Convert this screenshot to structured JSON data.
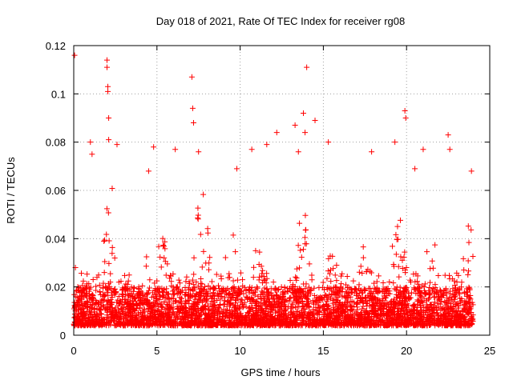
{
  "chart_data": {
    "type": "scatter",
    "title": "Day 018 of 2021, Rate Of TEC Index for receiver rg08",
    "xlabel": "GPS time / hours",
    "ylabel": "ROTI / TECUs",
    "xlim": [
      0,
      25
    ],
    "ylim": [
      0,
      0.12
    ],
    "x_ticks": [
      0,
      5,
      10,
      15,
      20,
      25
    ],
    "y_ticks": [
      0,
      0.02,
      0.04,
      0.06,
      0.08,
      0.1,
      0.12
    ],
    "x_tick_labels": [
      "0",
      "5",
      "10",
      "15",
      "20",
      "25"
    ],
    "y_tick_labels": [
      "0",
      "0.02",
      "0.04",
      "0.06",
      "0.08",
      "0.1",
      "0.12"
    ],
    "grid": true,
    "marker": "+",
    "color": "#ff0000",
    "series": [
      {
        "name": "rg08",
        "data_range_x": [
          0,
          24
        ],
        "baseline_range_y": [
          0.004,
          0.02
        ],
        "spike_points": [
          {
            "x": 0.05,
            "y": 0.116
          },
          {
            "x": 0.1,
            "y": 0.028
          },
          {
            "x": 1.0,
            "y": 0.08
          },
          {
            "x": 1.1,
            "y": 0.075
          },
          {
            "x": 2.0,
            "y": 0.114
          },
          {
            "x": 2.0,
            "y": 0.111
          },
          {
            "x": 2.05,
            "y": 0.103
          },
          {
            "x": 2.05,
            "y": 0.101
          },
          {
            "x": 2.1,
            "y": 0.09
          },
          {
            "x": 2.1,
            "y": 0.081
          },
          {
            "x": 2.6,
            "y": 0.079
          },
          {
            "x": 4.5,
            "y": 0.068
          },
          {
            "x": 4.8,
            "y": 0.078
          },
          {
            "x": 6.1,
            "y": 0.077
          },
          {
            "x": 7.1,
            "y": 0.107
          },
          {
            "x": 7.15,
            "y": 0.094
          },
          {
            "x": 7.2,
            "y": 0.088
          },
          {
            "x": 7.5,
            "y": 0.076
          },
          {
            "x": 9.8,
            "y": 0.069
          },
          {
            "x": 10.7,
            "y": 0.077
          },
          {
            "x": 11.6,
            "y": 0.079
          },
          {
            "x": 12.2,
            "y": 0.084
          },
          {
            "x": 13.3,
            "y": 0.087
          },
          {
            "x": 13.5,
            "y": 0.076
          },
          {
            "x": 13.8,
            "y": 0.092
          },
          {
            "x": 13.9,
            "y": 0.084
          },
          {
            "x": 14.0,
            "y": 0.111
          },
          {
            "x": 14.5,
            "y": 0.089
          },
          {
            "x": 15.3,
            "y": 0.08
          },
          {
            "x": 17.9,
            "y": 0.076
          },
          {
            "x": 19.3,
            "y": 0.08
          },
          {
            "x": 19.9,
            "y": 0.093
          },
          {
            "x": 19.95,
            "y": 0.09
          },
          {
            "x": 20.5,
            "y": 0.069
          },
          {
            "x": 21.0,
            "y": 0.077
          },
          {
            "x": 22.5,
            "y": 0.083
          },
          {
            "x": 22.6,
            "y": 0.077
          },
          {
            "x": 23.9,
            "y": 0.068
          }
        ]
      }
    ]
  }
}
